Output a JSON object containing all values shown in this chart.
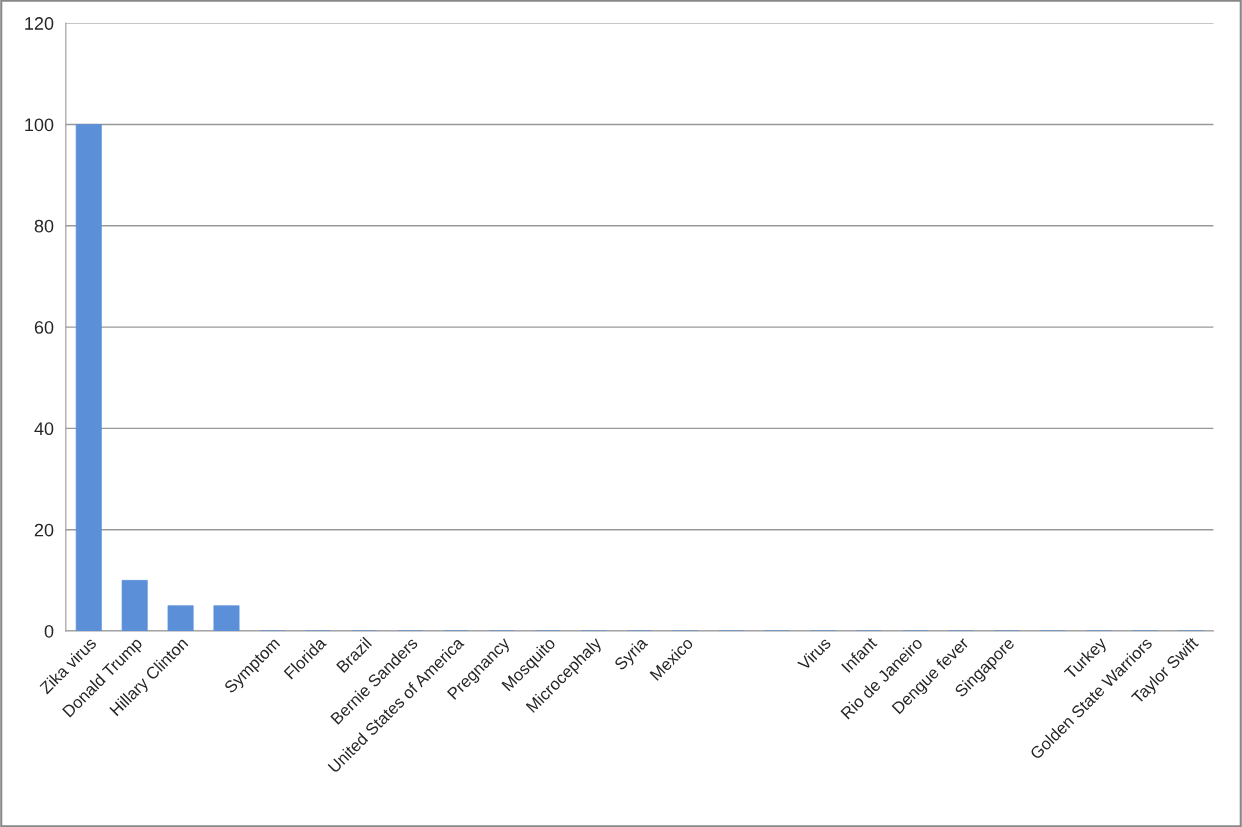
{
  "chart_data": {
    "type": "bar",
    "categories": [
      "Zika virus",
      "Donald Trump",
      "Hillary Clinton",
      null,
      "Symptom",
      "Florida",
      "Brazil",
      "Bernie Sanders",
      "United States of America",
      "Pregnancy",
      "Mosquito",
      "Microcephaly",
      "Syria",
      "Mexico",
      null,
      null,
      "Virus",
      "Infant",
      "Rio de Janeiro",
      "Dengue fever",
      "Singapore",
      null,
      "Turkey",
      "Golden State Warriors",
      "Taylor Swift"
    ],
    "values": [
      100,
      10,
      5,
      5,
      0,
      0,
      0,
      0,
      0,
      0,
      0,
      0,
      0,
      0,
      0,
      0,
      0,
      0,
      0,
      0,
      0,
      0,
      0,
      0,
      0
    ],
    "color": "#5b8fd8",
    "ylim": [
      0,
      120
    ],
    "yticks": [
      0,
      20,
      40,
      60,
      80,
      100,
      120
    ],
    "grid": "y"
  }
}
